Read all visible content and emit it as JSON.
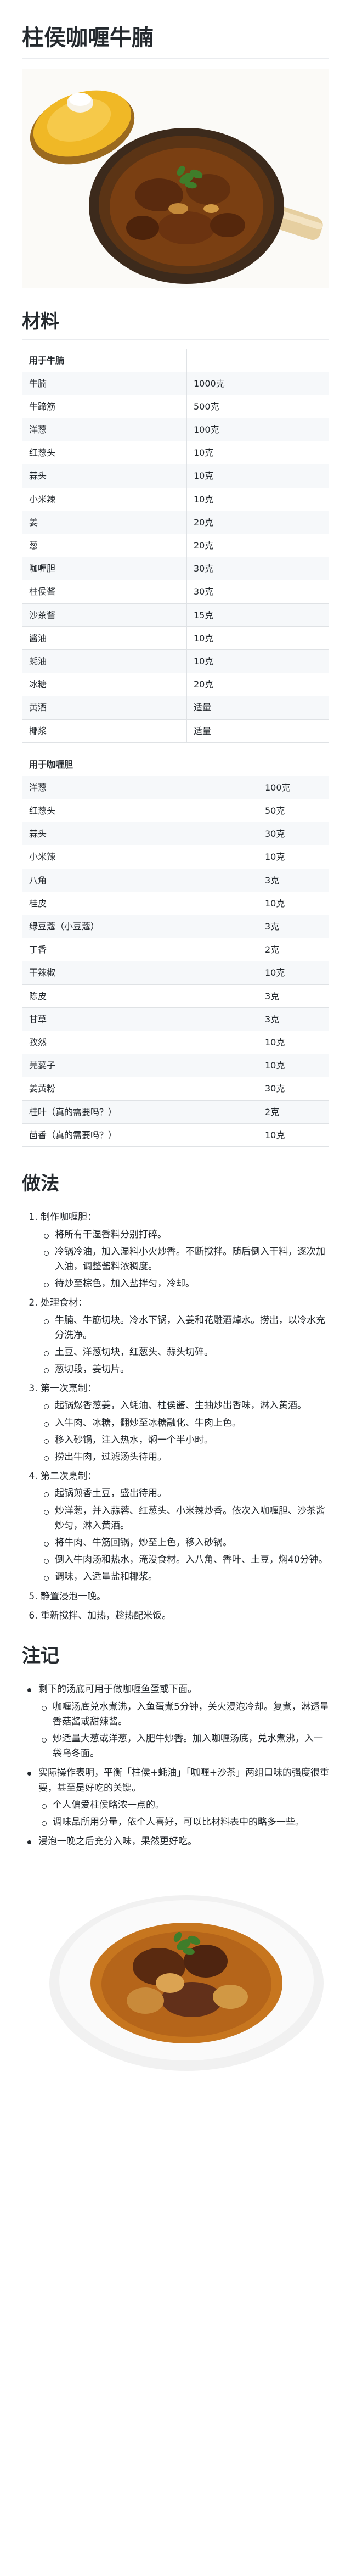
{
  "title": "柱侯咖喱牛腩",
  "sections": {
    "materials": "材料",
    "method": "做法",
    "notes": "注记"
  },
  "table_beef": {
    "header": "用于牛腩",
    "rows": [
      [
        "牛腩",
        "1000克"
      ],
      [
        "牛蹄筋",
        "500克"
      ],
      [
        "洋葱",
        "100克"
      ],
      [
        "红葱头",
        "10克"
      ],
      [
        "蒜头",
        "10克"
      ],
      [
        "小米辣",
        "10克"
      ],
      [
        "姜",
        "20克"
      ],
      [
        "葱",
        "20克"
      ],
      [
        "咖喱胆",
        "30克"
      ],
      [
        "柱侯酱",
        "30克"
      ],
      [
        "沙茶酱",
        "15克"
      ],
      [
        "酱油",
        "10克"
      ],
      [
        "蚝油",
        "10克"
      ],
      [
        "冰糖",
        "20克"
      ],
      [
        "黄酒",
        "适量"
      ],
      [
        "椰浆",
        "适量"
      ]
    ]
  },
  "table_curry": {
    "header": "用于咖喱胆",
    "rows": [
      [
        "洋葱",
        "100克"
      ],
      [
        "红葱头",
        "50克"
      ],
      [
        "蒜头",
        "30克"
      ],
      [
        "小米辣",
        "10克"
      ],
      [
        "八角",
        "3克"
      ],
      [
        "桂皮",
        "10克"
      ],
      [
        "绿豆蔻（小豆蔻）",
        "3克"
      ],
      [
        "丁香",
        "2克"
      ],
      [
        "干辣椒",
        "10克"
      ],
      [
        "陈皮",
        "3克"
      ],
      [
        "甘草",
        "3克"
      ],
      [
        "孜然",
        "10克"
      ],
      [
        "芫荽子",
        "10克"
      ],
      [
        "姜黄粉",
        "30克"
      ],
      [
        "桂叶（真的需要吗？）",
        "2克"
      ],
      [
        "茴香（真的需要吗？）",
        "10克"
      ]
    ]
  },
  "steps": [
    {
      "text": "制作咖喱胆：",
      "subs": [
        "将所有干湿香料分别打碎。",
        "冷锅冷油，加入湿料小火炒香。不断搅拌。随后倒入干料，逐次加入油，调整酱料浓稠度。",
        "待炒至棕色，加入盐拌匀，冷却。"
      ]
    },
    {
      "text": "处理食材：",
      "subs": [
        "牛腩、牛筋切块。冷水下锅，入姜和花雕酒焯水。捞出，以冷水充分洗净。",
        "土豆、洋葱切块，红葱头、蒜头切碎。",
        "葱切段，姜切片。"
      ]
    },
    {
      "text": "第一次烹制：",
      "subs": [
        "起锅爆香葱姜，入蚝油、柱侯酱、生抽炒出香味，淋入黄酒。",
        "入牛肉、冰糖，翻炒至冰糖融化、牛肉上色。",
        "移入砂锅，注入热水，焖一个半小时。",
        "捞出牛肉，过滤汤头待用。"
      ]
    },
    {
      "text": "第二次烹制：",
      "subs": [
        "起锅煎香土豆，盛出待用。",
        "炒洋葱，并入蒜蓉、红葱头、小米辣炒香。依次入咖喱胆、沙茶酱炒匀，淋入黄酒。",
        "将牛肉、牛筋回锅，炒至上色，移入砂锅。",
        "倒入牛肉汤和热水，淹没食材。入八角、香叶、土豆，焖40分钟。",
        "调味，入适量盐和椰浆。"
      ]
    },
    {
      "text": "静置浸泡一晚。",
      "subs": []
    },
    {
      "text": "重新搅拌、加热，趁热配米饭。",
      "subs": []
    }
  ],
  "notes": [
    {
      "text": "剩下的汤底可用于做咖喱鱼蛋或下面。",
      "subs": [
        "咖喱汤底兑水煮沸，入鱼蛋煮5分钟，关火浸泡冷却。复煮，淋透量香菇酱或甜辣酱。",
        "炒适量大葱或洋葱，入肥牛炒香。加入咖喱汤底，兑水煮沸，入一袋乌冬面。"
      ]
    },
    {
      "text": "实际操作表明，平衡「柱侯+蚝油」「咖喱+沙茶」两组口味的强度很重要，甚至是好吃的关键。",
      "subs": [
        "个人偏爱柱侯略浓一点的。",
        "调味品所用分量，依个人喜好，可以比材料表中的略多一些。"
      ]
    },
    {
      "text": "浸泡一晚之后充分入味，果然更好吃。",
      "subs": []
    }
  ]
}
